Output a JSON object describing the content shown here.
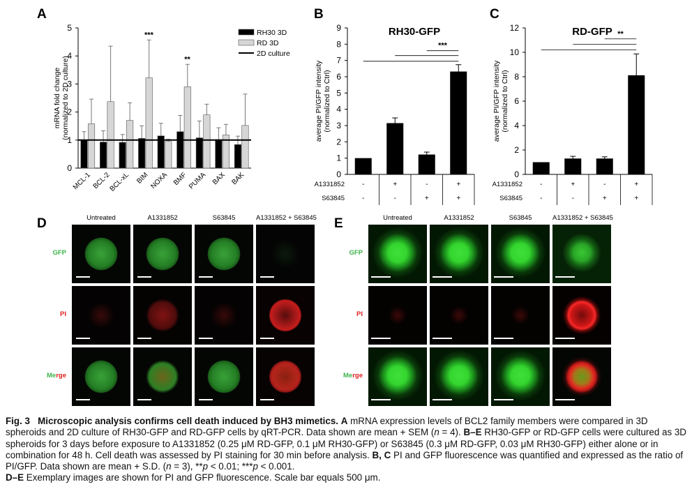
{
  "panels": {
    "A": {
      "letter": "A",
      "ylabel_line1": "mRNA fold change",
      "ylabel_line2": "(normalized to 2D culture)",
      "legend": [
        "RH30 3D",
        "RD 3D",
        "2D culture"
      ],
      "significance": [
        {
          "category": "BIM",
          "text": "***"
        },
        {
          "category": "BMF",
          "text": "**"
        }
      ]
    },
    "B": {
      "letter": "B",
      "title": "RH30-GFP",
      "ylabel_line1": "average PI/GFP intensity",
      "ylabel_line2": "(normalized to Ctrl)",
      "sig_text": "***",
      "treat_rows": [
        {
          "label": "A1331852",
          "values": [
            "-",
            "+",
            "-",
            "+"
          ]
        },
        {
          "label": "S63845",
          "values": [
            "-",
            "-",
            "+",
            "+"
          ]
        }
      ]
    },
    "C": {
      "letter": "C",
      "title": "RD-GFP",
      "ylabel_line1": "average PI/GFP intensity",
      "ylabel_line2": "(normalized to Ctrl)",
      "sig_text": "**",
      "treat_rows": [
        {
          "label": "A1331852",
          "values": [
            "-",
            "+",
            "-",
            "+"
          ]
        },
        {
          "label": "S63845",
          "values": [
            "-",
            "-",
            "+",
            "+"
          ]
        }
      ]
    },
    "D": {
      "letter": "D"
    },
    "E": {
      "letter": "E"
    }
  },
  "chart_data": [
    {
      "id": "A",
      "type": "bar",
      "categories": [
        "MCL-1",
        "BCL-2",
        "BCL-xL",
        "BIM",
        "NOXA",
        "BMF",
        "PUMA",
        "BAX",
        "BAK"
      ],
      "series": [
        {
          "name": "RH30 3D",
          "color": "#000000",
          "values": [
            1.0,
            0.93,
            0.92,
            1.06,
            1.15,
            1.3,
            1.08,
            1.02,
            0.84
          ],
          "err": [
            0.3,
            0.4,
            0.28,
            0.45,
            0.45,
            0.58,
            0.6,
            0.42,
            0.3
          ]
        },
        {
          "name": "RD 3D",
          "color": "#d6d6d6",
          "values": [
            1.58,
            2.37,
            1.7,
            3.22,
            0.95,
            2.9,
            1.9,
            1.18,
            1.52
          ],
          "err": [
            0.88,
            1.98,
            0.63,
            1.35,
            0.08,
            0.8,
            0.38,
            0.38,
            1.12
          ]
        }
      ],
      "reference_line": {
        "name": "2D culture",
        "value": 1
      },
      "yticks": [
        0,
        1,
        2,
        3,
        4,
        5
      ],
      "ylim": [
        0,
        5
      ]
    },
    {
      "id": "B",
      "type": "bar",
      "categories": [
        "1",
        "2",
        "3",
        "4"
      ],
      "values": [
        1.0,
        3.15,
        1.22,
        6.32
      ],
      "err": [
        0.0,
        0.32,
        0.15,
        0.42
      ],
      "yticks": [
        0,
        1,
        2,
        3,
        4,
        5,
        6,
        7,
        8,
        9
      ],
      "ylim": [
        0,
        9
      ]
    },
    {
      "id": "C",
      "type": "bar",
      "categories": [
        "1",
        "2",
        "3",
        "4"
      ],
      "values": [
        1.0,
        1.3,
        1.3,
        8.12
      ],
      "err": [
        0.0,
        0.18,
        0.14,
        1.75
      ],
      "yticks": [
        0,
        2,
        4,
        6,
        8,
        10,
        12
      ],
      "ylim": [
        0,
        12
      ]
    }
  ],
  "micrographs": {
    "D": {
      "columns": [
        "Untreated",
        "A1331852",
        "S63845",
        "A1331852 + S63845"
      ],
      "rows": [
        {
          "label": "GFP",
          "color": "#3cb44b"
        },
        {
          "label": "PI",
          "color": "#e02020"
        },
        {
          "label": "Merge",
          "color": "#3cb44b",
          "segments": [
            {
              "text": "Me",
              "color": "#3cb44b"
            },
            {
              "text": "rge",
              "color": "#e02020"
            }
          ]
        }
      ]
    },
    "E": {
      "columns": [
        "Untreated",
        "A1331852",
        "S63845",
        "A1331852 + S63845"
      ],
      "rows": [
        {
          "label": "GFP",
          "color": "#3cb44b"
        },
        {
          "label": "PI",
          "color": "#e02020"
        },
        {
          "label": "Merge",
          "color": "#3cb44b",
          "segments": [
            {
              "text": "Me",
              "color": "#3cb44b"
            },
            {
              "text": "rge",
              "color": "#e02020"
            }
          ]
        }
      ]
    }
  },
  "caption": {
    "fig": "Fig. 3",
    "title": "Microscopic analysis confirms cell death induced by BH3 mimetics.",
    "a_letter": "A",
    "a_text": "mRNA expression levels of BCL2 family members were compared in 3D spheroids and 2D culture of RH30-GFP and RD-GFP cells by qRT-PCR. Data shown are mean + SEM (",
    "n_var": "n",
    "a_text_n": " = 4).",
    "be_letter": "B–E",
    "be_text": "RH30-GFP or RD-GFP cells were cultured as 3D spheroids for 3 days before exposure to A1331852 (0.25 μM RD-GFP, 0.1 μM RH30-GFP) or S63845 (0.3 μM RD-GFP, 0.03 μM RH30-GFP) either alone or in combination for 48 h. Cell death was assessed by PI staining for 30 min before analysis.",
    "bc_letter": "B, C",
    "bc_text": "PI and GFP fluorescence was quantified and expressed as the ratio of PI/GFP. Data shown are mean + S.D. (",
    "bc_n": " = 3), **",
    "p1": "p",
    "p1_text": " < 0.01; ***",
    "p2": "p",
    "p2_text": " < 0.001.",
    "de_letter": "D–E",
    "de_text": "Exemplary images are shown for PI and GFP fluorescence. Scale bar equals 500 μm."
  }
}
